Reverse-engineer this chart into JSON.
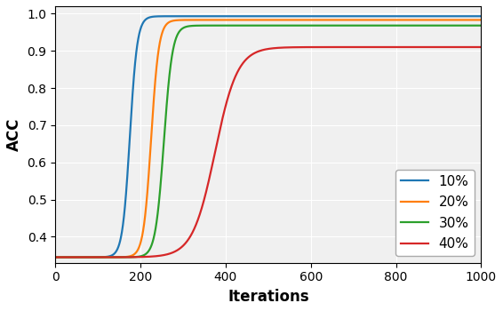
{
  "title": "",
  "xlabel": "Iterations",
  "ylabel": "ACC",
  "xlim": [
    0,
    1000
  ],
  "ylim": [
    0.33,
    1.02
  ],
  "yticks": [
    0.4,
    0.5,
    0.6,
    0.7,
    0.8,
    0.9,
    1.0
  ],
  "xticks": [
    0,
    200,
    400,
    600,
    800,
    1000
  ],
  "lines": [
    {
      "label": "10%",
      "color": "#1f77b4",
      "midpoint": 175,
      "steepness": 0.115,
      "y_start": 0.345,
      "y_end": 0.993
    },
    {
      "label": "20%",
      "color": "#ff7f0e",
      "midpoint": 225,
      "steepness": 0.11,
      "y_start": 0.345,
      "y_end": 0.983
    },
    {
      "label": "30%",
      "color": "#2ca02c",
      "midpoint": 255,
      "steepness": 0.1,
      "y_start": 0.345,
      "y_end": 0.968
    },
    {
      "label": "40%",
      "color": "#d62728",
      "midpoint": 375,
      "steepness": 0.038,
      "y_start": 0.345,
      "y_end": 0.91
    }
  ],
  "legend_loc": "lower right",
  "legend_fontsize": 11,
  "axis_label_fontsize": 12,
  "tick_fontsize": 10,
  "linewidth": 1.6,
  "figsize": [
    5.66,
    3.5
  ],
  "dpi": 100,
  "background_color": "#f0f0f0",
  "grid_color": "white",
  "grid_linewidth": 0.8
}
